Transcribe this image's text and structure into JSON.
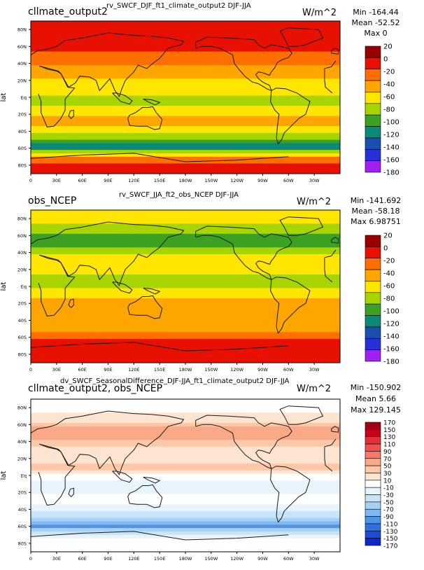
{
  "colors": {
    "land": "#1a1a1a",
    "frame": "#000000"
  },
  "panels": [
    {
      "id": "test",
      "title": "cllmate_output2",
      "center_title": "rv_SWCF_DJF_ft1_climate_output2  DJF-JJA",
      "units": "W/m^2",
      "stats": {
        "min": "Min -164.44",
        "mean": "Mean -52.52",
        "max": "Max 0"
      },
      "ylabel": "lat",
      "lat_ticks": [
        "80N",
        "60N",
        "40N",
        "20N",
        "Eq",
        "20S",
        "40S",
        "60S",
        "80S"
      ],
      "lon_ticks": [
        "0",
        "30E",
        "60E",
        "90E",
        "120E",
        "150E",
        "180W",
        "150W",
        "120W",
        "90W",
        "60W",
        "30W"
      ],
      "colorbar": {
        "labels": [
          "20",
          "0",
          "-20",
          "-40",
          "-60",
          "-80",
          "-100",
          "-120",
          "-140",
          "-160",
          "-180"
        ],
        "colors": [
          "#9b0000",
          "#e81000",
          "#ff6f00",
          "#ffa500",
          "#ffe600",
          "#a8d400",
          "#3ca020",
          "#0a8a78",
          "#1a4fb0",
          "#2830d8",
          "#a020f0"
        ]
      },
      "chart_data": {
        "type": "heatmap",
        "title": "rv_SWCF_DJF_ft1_climate_output2  DJF-JJA",
        "ylabel": "lat",
        "xlim": [
          0,
          360
        ],
        "ylim": [
          -90,
          90
        ],
        "zrange": [
          -180,
          20
        ],
        "zonal_means": {
          "lat": [
            80,
            70,
            60,
            50,
            40,
            30,
            20,
            10,
            0,
            -10,
            -20,
            -30,
            -40,
            -50,
            -60,
            -70,
            -80
          ],
          "value": [
            -2,
            -5,
            -10,
            -20,
            -30,
            -45,
            -55,
            -60,
            -75,
            -70,
            -55,
            -45,
            -65,
            -95,
            -120,
            -40,
            -5
          ]
        }
      }
    },
    {
      "id": "obs",
      "title": "obs_NCEP",
      "center_title": "rv_SWCF_JJA_ft2_obs_NCEP  DJF-JJA",
      "units": "W/m^2",
      "stats": {
        "min": "Min -141.692",
        "mean": "Mean -58.18",
        "max": "Max 6.98751"
      },
      "ylabel": "lat",
      "lat_ticks": [
        "80N",
        "60N",
        "40N",
        "20N",
        "Eq",
        "20S",
        "40S",
        "60S",
        "80S"
      ],
      "lon_ticks": [
        "0",
        "30E",
        "60E",
        "90E",
        "120E",
        "150E",
        "180W",
        "150W",
        "120W",
        "90W",
        "60W",
        "30W"
      ],
      "colorbar": {
        "labels": [
          "20",
          "0",
          "-20",
          "-40",
          "-60",
          "-80",
          "-100",
          "-120",
          "-140",
          "-160",
          "-180"
        ],
        "colors": [
          "#9b0000",
          "#e81000",
          "#ff6f00",
          "#ffa500",
          "#ffe600",
          "#a8d400",
          "#3ca020",
          "#0a8a78",
          "#1a4fb0",
          "#2830d8",
          "#a020f0"
        ]
      },
      "chart_data": {
        "type": "heatmap",
        "title": "rv_SWCF_JJA_ft2_obs_NCEP  DJF-JJA",
        "ylabel": "lat",
        "xlim": [
          0,
          360
        ],
        "ylim": [
          -90,
          90
        ],
        "zrange": [
          -180,
          20
        ],
        "zonal_means": {
          "lat": [
            80,
            70,
            60,
            50,
            40,
            30,
            20,
            10,
            0,
            -10,
            -20,
            -30,
            -40,
            -50,
            -60,
            -70,
            -80
          ],
          "value": [
            -60,
            -75,
            -95,
            -95,
            -80,
            -55,
            -60,
            -75,
            -75,
            -55,
            -45,
            -50,
            -50,
            -40,
            -20,
            -5,
            -3
          ]
        }
      }
    },
    {
      "id": "diff",
      "title": "cllmate_output2, obs_NCEP",
      "center_title": "dv_SWCF_SeasonalDifference_DJF-JJA_ft1_climate_output2  DJF-JJA",
      "units": "W/m^2",
      "stats": {
        "min": "Min -150.902",
        "mean": "Mean 5.66",
        "max": "Max 129.145"
      },
      "ylabel": "lat",
      "lat_ticks": [
        "80N",
        "60N",
        "40N",
        "20N",
        "Eq",
        "20S",
        "40S",
        "60S",
        "80S"
      ],
      "lon_ticks": [
        "0",
        "30E",
        "60E",
        "90E",
        "120E",
        "150E",
        "180W",
        "150W",
        "120W",
        "90W",
        "60W",
        "30W"
      ],
      "colorbar": {
        "labels": [
          "170",
          "150",
          "130",
          "110",
          "90",
          "70",
          "50",
          "30",
          "10",
          "-10",
          "-30",
          "-50",
          "-70",
          "-90",
          "-110",
          "-130",
          "-150",
          "-170"
        ],
        "colors": [
          "#a50018",
          "#c8001e",
          "#e0303a",
          "#f05050",
          "#f47a6a",
          "#f9a888",
          "#fcc8a8",
          "#fde4d0",
          "#ffffff",
          "#e8f4fc",
          "#c8e4f8",
          "#a8d0f4",
          "#80b8f0",
          "#5094e8",
          "#3070e0",
          "#1e4cd8",
          "#1028c8"
        ]
      },
      "chart_data": {
        "type": "heatmap",
        "title": "dv_SWCF_SeasonalDifference_DJF-JJA_ft1_climate_output2  DJF-JJA",
        "ylabel": "lat",
        "xlim": [
          0,
          360
        ],
        "ylim": [
          -90,
          90
        ],
        "zrange": [
          -170,
          170
        ],
        "zonal_means": {
          "lat": [
            80,
            70,
            60,
            50,
            40,
            30,
            20,
            10,
            0,
            -10,
            -20,
            -30,
            -40,
            -50,
            -60,
            -70,
            -80
          ],
          "value": [
            5,
            15,
            40,
            70,
            50,
            15,
            20,
            40,
            5,
            -15,
            -10,
            -5,
            -20,
            -50,
            -100,
            -20,
            0
          ]
        }
      }
    }
  ]
}
